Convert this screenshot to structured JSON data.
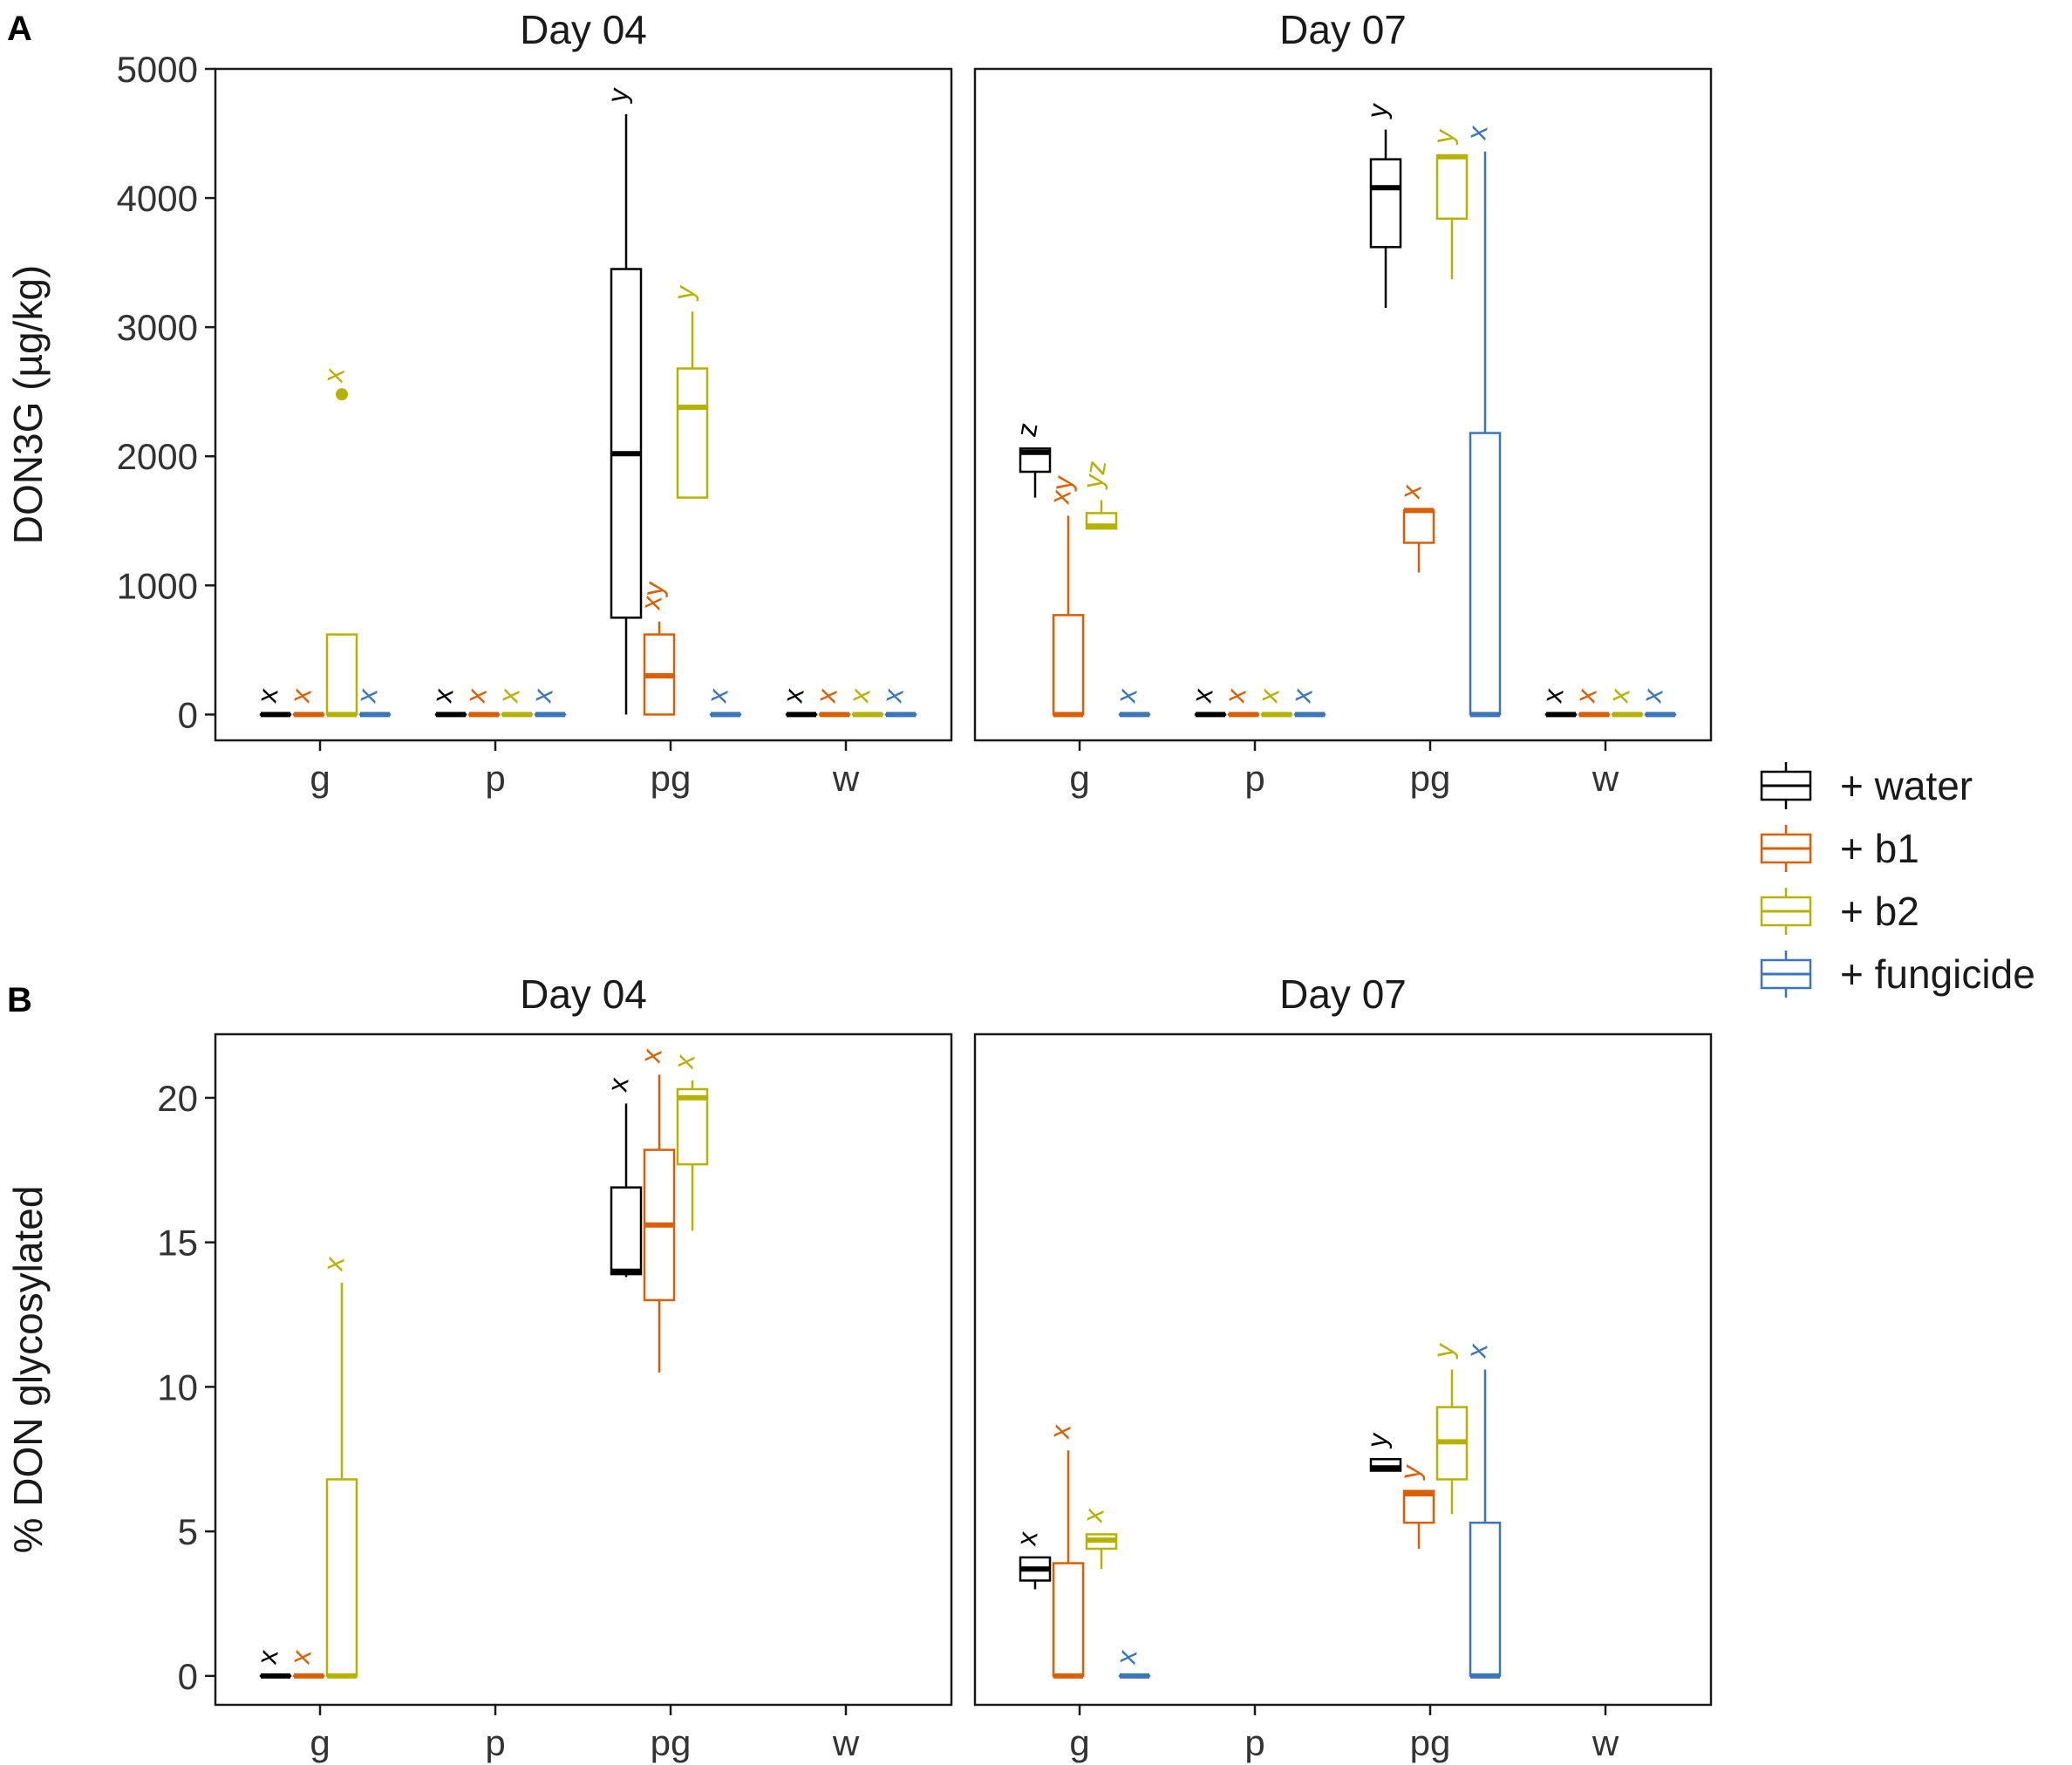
{
  "figure": {
    "colors": {
      "water": "#000000",
      "b1": "#d95f02",
      "b2": "#b5b300",
      "fungicide": "#3a76b8"
    },
    "legend": [
      {
        "key": "water",
        "label": "+ water"
      },
      {
        "key": "b1",
        "label": "+ b1"
      },
      {
        "key": "b2",
        "label": "+ b2"
      },
      {
        "key": "fungicide",
        "label": "+ fungicide"
      }
    ]
  },
  "chart_data": [
    {
      "type": "box",
      "panel_label": "A",
      "ylabel": "DON3G (µg/kg)",
      "ylim": [
        -200,
        5000
      ],
      "yticks": [
        0,
        1000,
        2000,
        3000,
        4000,
        5000
      ],
      "categories": [
        "g",
        "p",
        "pg",
        "w"
      ],
      "facets": [
        {
          "title": "Day 04",
          "boxes": [
            {
              "cat": "g",
              "grp": "water",
              "min": 0,
              "q1": 0,
              "med": 0,
              "q3": 0,
              "max": 0,
              "label": "x"
            },
            {
              "cat": "g",
              "grp": "b1",
              "min": 0,
              "q1": 0,
              "med": 0,
              "q3": 0,
              "max": 0,
              "label": "x"
            },
            {
              "cat": "g",
              "grp": "b2",
              "min": 0,
              "q1": 0,
              "med": 0,
              "q3": 620,
              "max": 620,
              "outliers": [
                2480
              ],
              "label": "x"
            },
            {
              "cat": "g",
              "grp": "fungicide",
              "min": 0,
              "q1": 0,
              "med": 0,
              "q3": 0,
              "max": 0,
              "label": "x"
            },
            {
              "cat": "p",
              "grp": "water",
              "min": 0,
              "q1": 0,
              "med": 0,
              "q3": 0,
              "max": 0,
              "label": "x"
            },
            {
              "cat": "p",
              "grp": "b1",
              "min": 0,
              "q1": 0,
              "med": 0,
              "q3": 0,
              "max": 0,
              "label": "x"
            },
            {
              "cat": "p",
              "grp": "b2",
              "min": 0,
              "q1": 0,
              "med": 0,
              "q3": 0,
              "max": 0,
              "label": "x"
            },
            {
              "cat": "p",
              "grp": "fungicide",
              "min": 0,
              "q1": 0,
              "med": 0,
              "q3": 0,
              "max": 0,
              "label": "x"
            },
            {
              "cat": "pg",
              "grp": "water",
              "min": 0,
              "q1": 750,
              "med": 2020,
              "q3": 3450,
              "max": 4650,
              "label": "y"
            },
            {
              "cat": "pg",
              "grp": "b1",
              "min": 0,
              "q1": 0,
              "med": 300,
              "q3": 620,
              "max": 720,
              "label": "xy"
            },
            {
              "cat": "pg",
              "grp": "b2",
              "min": 1680,
              "q1": 1680,
              "med": 2380,
              "q3": 2680,
              "max": 3120,
              "label": "y"
            },
            {
              "cat": "pg",
              "grp": "fungicide",
              "min": 0,
              "q1": 0,
              "med": 0,
              "q3": 0,
              "max": 0,
              "label": "x"
            },
            {
              "cat": "w",
              "grp": "water",
              "min": 0,
              "q1": 0,
              "med": 0,
              "q3": 0,
              "max": 0,
              "label": "x"
            },
            {
              "cat": "w",
              "grp": "b1",
              "min": 0,
              "q1": 0,
              "med": 0,
              "q3": 0,
              "max": 0,
              "label": "x"
            },
            {
              "cat": "w",
              "grp": "b2",
              "min": 0,
              "q1": 0,
              "med": 0,
              "q3": 0,
              "max": 0,
              "label": "x"
            },
            {
              "cat": "w",
              "grp": "fungicide",
              "min": 0,
              "q1": 0,
              "med": 0,
              "q3": 0,
              "max": 0,
              "label": "x"
            }
          ]
        },
        {
          "title": "Day 07",
          "boxes": [
            {
              "cat": "g",
              "grp": "water",
              "min": 1680,
              "q1": 1880,
              "med": 2030,
              "q3": 2060,
              "max": 2060,
              "label": "z"
            },
            {
              "cat": "g",
              "grp": "b1",
              "min": 0,
              "q1": 0,
              "med": 0,
              "q3": 770,
              "max": 1540,
              "label": "xy"
            },
            {
              "cat": "g",
              "grp": "b2",
              "min": 1440,
              "q1": 1440,
              "med": 1460,
              "q3": 1560,
              "max": 1660,
              "label": "yz"
            },
            {
              "cat": "g",
              "grp": "fungicide",
              "min": 0,
              "q1": 0,
              "med": 0,
              "q3": 0,
              "max": 0,
              "label": "x"
            },
            {
              "cat": "p",
              "grp": "water",
              "min": 0,
              "q1": 0,
              "med": 0,
              "q3": 0,
              "max": 0,
              "label": "x"
            },
            {
              "cat": "p",
              "grp": "b1",
              "min": 0,
              "q1": 0,
              "med": 0,
              "q3": 0,
              "max": 0,
              "label": "x"
            },
            {
              "cat": "p",
              "grp": "b2",
              "min": 0,
              "q1": 0,
              "med": 0,
              "q3": 0,
              "max": 0,
              "label": "x"
            },
            {
              "cat": "p",
              "grp": "fungicide",
              "min": 0,
              "q1": 0,
              "med": 0,
              "q3": 0,
              "max": 0,
              "label": "x"
            },
            {
              "cat": "pg",
              "grp": "water",
              "min": 3150,
              "q1": 3620,
              "med": 4080,
              "q3": 4300,
              "max": 4530,
              "label": "y"
            },
            {
              "cat": "pg",
              "grp": "b1",
              "min": 1100,
              "q1": 1330,
              "med": 1580,
              "q3": 1580,
              "max": 1580,
              "label": "x"
            },
            {
              "cat": "pg",
              "grp": "b2",
              "min": 3370,
              "q1": 3840,
              "med": 4320,
              "q3": 4330,
              "max": 4330,
              "label": "y"
            },
            {
              "cat": "pg",
              "grp": "fungicide",
              "min": 0,
              "q1": 0,
              "med": 0,
              "q3": 2180,
              "max": 4360,
              "label": "x"
            },
            {
              "cat": "w",
              "grp": "water",
              "min": 0,
              "q1": 0,
              "med": 0,
              "q3": 0,
              "max": 0,
              "label": "x"
            },
            {
              "cat": "w",
              "grp": "b1",
              "min": 0,
              "q1": 0,
              "med": 0,
              "q3": 0,
              "max": 0,
              "label": "x"
            },
            {
              "cat": "w",
              "grp": "b2",
              "min": 0,
              "q1": 0,
              "med": 0,
              "q3": 0,
              "max": 0,
              "label": "x"
            },
            {
              "cat": "w",
              "grp": "fungicide",
              "min": 0,
              "q1": 0,
              "med": 0,
              "q3": 0,
              "max": 0,
              "label": "x"
            }
          ]
        }
      ]
    },
    {
      "type": "box",
      "panel_label": "B",
      "ylabel": "% DON glycosylated",
      "ylim": [
        -1,
        22.2
      ],
      "yticks": [
        0,
        5,
        10,
        15,
        20
      ],
      "categories": [
        "g",
        "p",
        "pg",
        "w"
      ],
      "facets": [
        {
          "title": "Day 04",
          "boxes": [
            {
              "cat": "g",
              "grp": "water",
              "min": 0,
              "q1": 0,
              "med": 0,
              "q3": 0,
              "max": 0,
              "label": "x"
            },
            {
              "cat": "g",
              "grp": "b1",
              "min": 0,
              "q1": 0,
              "med": 0,
              "q3": 0,
              "max": 0,
              "label": "x"
            },
            {
              "cat": "g",
              "grp": "b2",
              "min": 0,
              "q1": 0,
              "med": 0,
              "q3": 6.8,
              "max": 13.6,
              "label": "x"
            },
            {
              "cat": "pg",
              "grp": "water",
              "min": 13.8,
              "q1": 13.9,
              "med": 14.0,
              "q3": 16.9,
              "max": 19.8,
              "label": "x"
            },
            {
              "cat": "pg",
              "grp": "b1",
              "min": 10.5,
              "q1": 13.0,
              "med": 15.6,
              "q3": 18.2,
              "max": 20.8,
              "label": "x"
            },
            {
              "cat": "pg",
              "grp": "b2",
              "min": 15.4,
              "q1": 17.7,
              "med": 20.0,
              "q3": 20.3,
              "max": 20.6,
              "label": "x"
            }
          ]
        },
        {
          "title": "Day 07",
          "boxes": [
            {
              "cat": "g",
              "grp": "water",
              "min": 3.0,
              "q1": 3.3,
              "med": 3.7,
              "q3": 4.1,
              "max": 4.1,
              "label": "x"
            },
            {
              "cat": "g",
              "grp": "b1",
              "min": 0,
              "q1": 0,
              "med": 0,
              "q3": 3.9,
              "max": 7.8,
              "label": "x"
            },
            {
              "cat": "g",
              "grp": "b2",
              "min": 3.7,
              "q1": 4.4,
              "med": 4.7,
              "q3": 4.9,
              "max": 4.9,
              "label": "x"
            },
            {
              "cat": "g",
              "grp": "fungicide",
              "min": 0,
              "q1": 0,
              "med": 0,
              "q3": 0,
              "max": 0,
              "label": "x"
            },
            {
              "cat": "pg",
              "grp": "water",
              "min": 7.1,
              "q1": 7.1,
              "med": 7.2,
              "q3": 7.5,
              "max": 7.5,
              "label": "y"
            },
            {
              "cat": "pg",
              "grp": "b1",
              "min": 4.4,
              "q1": 5.3,
              "med": 6.3,
              "q3": 6.4,
              "max": 6.4,
              "label": "y"
            },
            {
              "cat": "pg",
              "grp": "b2",
              "min": 5.6,
              "q1": 6.8,
              "med": 8.1,
              "q3": 9.3,
              "max": 10.6,
              "label": "y"
            },
            {
              "cat": "pg",
              "grp": "fungicide",
              "min": 0,
              "q1": 0,
              "med": 0,
              "q3": 5.3,
              "max": 10.6,
              "label": "x"
            }
          ]
        }
      ]
    }
  ]
}
